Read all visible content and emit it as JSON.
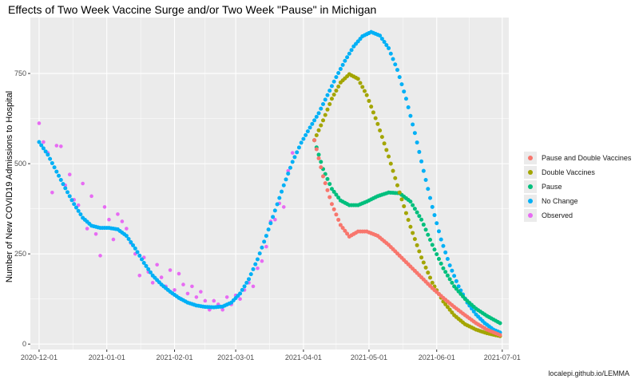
{
  "chart_data": {
    "type": "scatter",
    "title": "Effects of Two Week Vaccine Surge and/or Two Week \"Pause\" in Michigan",
    "xlabel": "",
    "ylabel": "Number of New COVID19 Admissions to Hospital",
    "caption": "localepi.github.io/LEMMA",
    "x_tick_labels": [
      "2020-12-01",
      "2021-01-01",
      "2021-02-01",
      "2021-03-01",
      "2021-04-01",
      "2021-05-01",
      "2021-06-01",
      "2021-07-01"
    ],
    "y_ticks": [
      0,
      250,
      500,
      750
    ],
    "xlim": [
      "2020-11-27",
      "2021-07-04"
    ],
    "ylim": [
      -15,
      905
    ],
    "grid": true,
    "legend_position": "right",
    "series": [
      {
        "name": "Pause and Double Vaccines",
        "color": "#F8766D",
        "points": [
          [
            "2021-04-06",
            565
          ],
          [
            "2021-04-10",
            465
          ],
          [
            "2021-04-14",
            388
          ],
          [
            "2021-04-18",
            330
          ],
          [
            "2021-04-22",
            298
          ],
          [
            "2021-04-26",
            312
          ],
          [
            "2021-04-30",
            312
          ],
          [
            "2021-05-05",
            300
          ],
          [
            "2021-05-10",
            275
          ],
          [
            "2021-05-15",
            245
          ],
          [
            "2021-05-20",
            215
          ],
          [
            "2021-05-25",
            185
          ],
          [
            "2021-05-30",
            155
          ],
          [
            "2021-06-04",
            128
          ],
          [
            "2021-06-09",
            103
          ],
          [
            "2021-06-14",
            80
          ],
          [
            "2021-06-19",
            58
          ],
          [
            "2021-06-24",
            40
          ],
          [
            "2021-06-30",
            25
          ]
        ]
      },
      {
        "name": "Double Vaccines",
        "color": "#A3A500",
        "points": [
          [
            "2021-04-06",
            565
          ],
          [
            "2021-04-10",
            620
          ],
          [
            "2021-04-14",
            680
          ],
          [
            "2021-04-18",
            725
          ],
          [
            "2021-04-22",
            748
          ],
          [
            "2021-04-26",
            735
          ],
          [
            "2021-04-30",
            690
          ],
          [
            "2021-05-05",
            610
          ],
          [
            "2021-05-10",
            520
          ],
          [
            "2021-05-15",
            420
          ],
          [
            "2021-05-20",
            325
          ],
          [
            "2021-05-25",
            240
          ],
          [
            "2021-05-30",
            170
          ],
          [
            "2021-06-04",
            118
          ],
          [
            "2021-06-09",
            80
          ],
          [
            "2021-06-14",
            55
          ],
          [
            "2021-06-19",
            40
          ],
          [
            "2021-06-24",
            30
          ],
          [
            "2021-06-30",
            22
          ]
        ]
      },
      {
        "name": "Pause",
        "color": "#00BF7D",
        "points": [
          [
            "2021-04-06",
            565
          ],
          [
            "2021-04-10",
            485
          ],
          [
            "2021-04-14",
            430
          ],
          [
            "2021-04-18",
            398
          ],
          [
            "2021-04-22",
            385
          ],
          [
            "2021-04-26",
            385
          ],
          [
            "2021-04-30",
            395
          ],
          [
            "2021-05-05",
            410
          ],
          [
            "2021-05-10",
            420
          ],
          [
            "2021-05-15",
            418
          ],
          [
            "2021-05-20",
            395
          ],
          [
            "2021-05-25",
            345
          ],
          [
            "2021-05-30",
            275
          ],
          [
            "2021-06-04",
            210
          ],
          [
            "2021-06-09",
            160
          ],
          [
            "2021-06-14",
            125
          ],
          [
            "2021-06-19",
            98
          ],
          [
            "2021-06-24",
            78
          ],
          [
            "2021-06-30",
            58
          ]
        ]
      },
      {
        "name": "No Change",
        "color": "#00B0F6",
        "points": [
          [
            "2020-12-01",
            560
          ],
          [
            "2020-12-05",
            525
          ],
          [
            "2020-12-09",
            478
          ],
          [
            "2020-12-13",
            432
          ],
          [
            "2020-12-17",
            388
          ],
          [
            "2020-12-21",
            350
          ],
          [
            "2020-12-25",
            328
          ],
          [
            "2020-12-29",
            322
          ],
          [
            "2021-01-02",
            322
          ],
          [
            "2021-01-06",
            318
          ],
          [
            "2021-01-10",
            300
          ],
          [
            "2021-01-14",
            265
          ],
          [
            "2021-01-18",
            225
          ],
          [
            "2021-01-22",
            190
          ],
          [
            "2021-01-26",
            165
          ],
          [
            "2021-01-30",
            145
          ],
          [
            "2021-02-03",
            128
          ],
          [
            "2021-02-07",
            115
          ],
          [
            "2021-02-11",
            107
          ],
          [
            "2021-02-15",
            103
          ],
          [
            "2021-02-19",
            102
          ],
          [
            "2021-02-23",
            104
          ],
          [
            "2021-02-27",
            115
          ],
          [
            "2021-03-03",
            140
          ],
          [
            "2021-03-07",
            180
          ],
          [
            "2021-03-11",
            235
          ],
          [
            "2021-03-15",
            300
          ],
          [
            "2021-03-19",
            370
          ],
          [
            "2021-03-23",
            440
          ],
          [
            "2021-03-27",
            505
          ],
          [
            "2021-03-31",
            558
          ],
          [
            "2021-04-04",
            600
          ],
          [
            "2021-04-08",
            640
          ],
          [
            "2021-04-12",
            690
          ],
          [
            "2021-04-16",
            740
          ],
          [
            "2021-04-20",
            785
          ],
          [
            "2021-04-24",
            825
          ],
          [
            "2021-04-28",
            853
          ],
          [
            "2021-05-02",
            865
          ],
          [
            "2021-05-06",
            855
          ],
          [
            "2021-05-10",
            820
          ],
          [
            "2021-05-14",
            760
          ],
          [
            "2021-05-18",
            680
          ],
          [
            "2021-05-22",
            585
          ],
          [
            "2021-05-26",
            480
          ],
          [
            "2021-05-30",
            380
          ],
          [
            "2021-06-03",
            290
          ],
          [
            "2021-06-07",
            218
          ],
          [
            "2021-06-11",
            160
          ],
          [
            "2021-06-15",
            115
          ],
          [
            "2021-06-19",
            82
          ],
          [
            "2021-06-23",
            58
          ],
          [
            "2021-06-27",
            40
          ],
          [
            "2021-06-30",
            32
          ]
        ]
      },
      {
        "name": "Observed",
        "color": "#E76BF3",
        "points": [
          [
            "2020-12-01",
            612
          ],
          [
            "2020-12-03",
            560
          ],
          [
            "2020-12-05",
            530
          ],
          [
            "2020-12-07",
            420
          ],
          [
            "2020-12-09",
            550
          ],
          [
            "2020-12-11",
            548
          ],
          [
            "2020-12-13",
            440
          ],
          [
            "2020-12-15",
            470
          ],
          [
            "2020-12-17",
            400
          ],
          [
            "2020-12-19",
            385
          ],
          [
            "2020-12-21",
            445
          ],
          [
            "2020-12-23",
            320
          ],
          [
            "2020-12-25",
            410
          ],
          [
            "2020-12-27",
            305
          ],
          [
            "2020-12-29",
            245
          ],
          [
            "2020-12-31",
            380
          ],
          [
            "2021-01-02",
            345
          ],
          [
            "2021-01-04",
            290
          ],
          [
            "2021-01-06",
            360
          ],
          [
            "2021-01-08",
            340
          ],
          [
            "2021-01-10",
            320
          ],
          [
            "2021-01-12",
            280
          ],
          [
            "2021-01-14",
            250
          ],
          [
            "2021-01-16",
            190
          ],
          [
            "2021-01-18",
            240
          ],
          [
            "2021-01-20",
            200
          ],
          [
            "2021-01-22",
            170
          ],
          [
            "2021-01-24",
            220
          ],
          [
            "2021-01-26",
            185
          ],
          [
            "2021-01-28",
            160
          ],
          [
            "2021-01-30",
            205
          ],
          [
            "2021-02-01",
            150
          ],
          [
            "2021-02-03",
            195
          ],
          [
            "2021-02-05",
            165
          ],
          [
            "2021-02-07",
            140
          ],
          [
            "2021-02-09",
            160
          ],
          [
            "2021-02-11",
            130
          ],
          [
            "2021-02-13",
            145
          ],
          [
            "2021-02-15",
            120
          ],
          [
            "2021-02-17",
            95
          ],
          [
            "2021-02-19",
            120
          ],
          [
            "2021-02-21",
            110
          ],
          [
            "2021-02-23",
            95
          ],
          [
            "2021-02-25",
            130
          ],
          [
            "2021-02-27",
            110
          ],
          [
            "2021-03-01",
            135
          ],
          [
            "2021-03-03",
            125
          ],
          [
            "2021-03-05",
            150
          ],
          [
            "2021-03-07",
            170
          ],
          [
            "2021-03-09",
            160
          ],
          [
            "2021-03-11",
            210
          ],
          [
            "2021-03-13",
            230
          ],
          [
            "2021-03-15",
            270
          ],
          [
            "2021-03-17",
            340
          ],
          [
            "2021-03-19",
            345
          ],
          [
            "2021-03-21",
            390
          ],
          [
            "2021-03-23",
            380
          ],
          [
            "2021-03-25",
            480
          ],
          [
            "2021-03-27",
            530
          ]
        ]
      }
    ]
  }
}
